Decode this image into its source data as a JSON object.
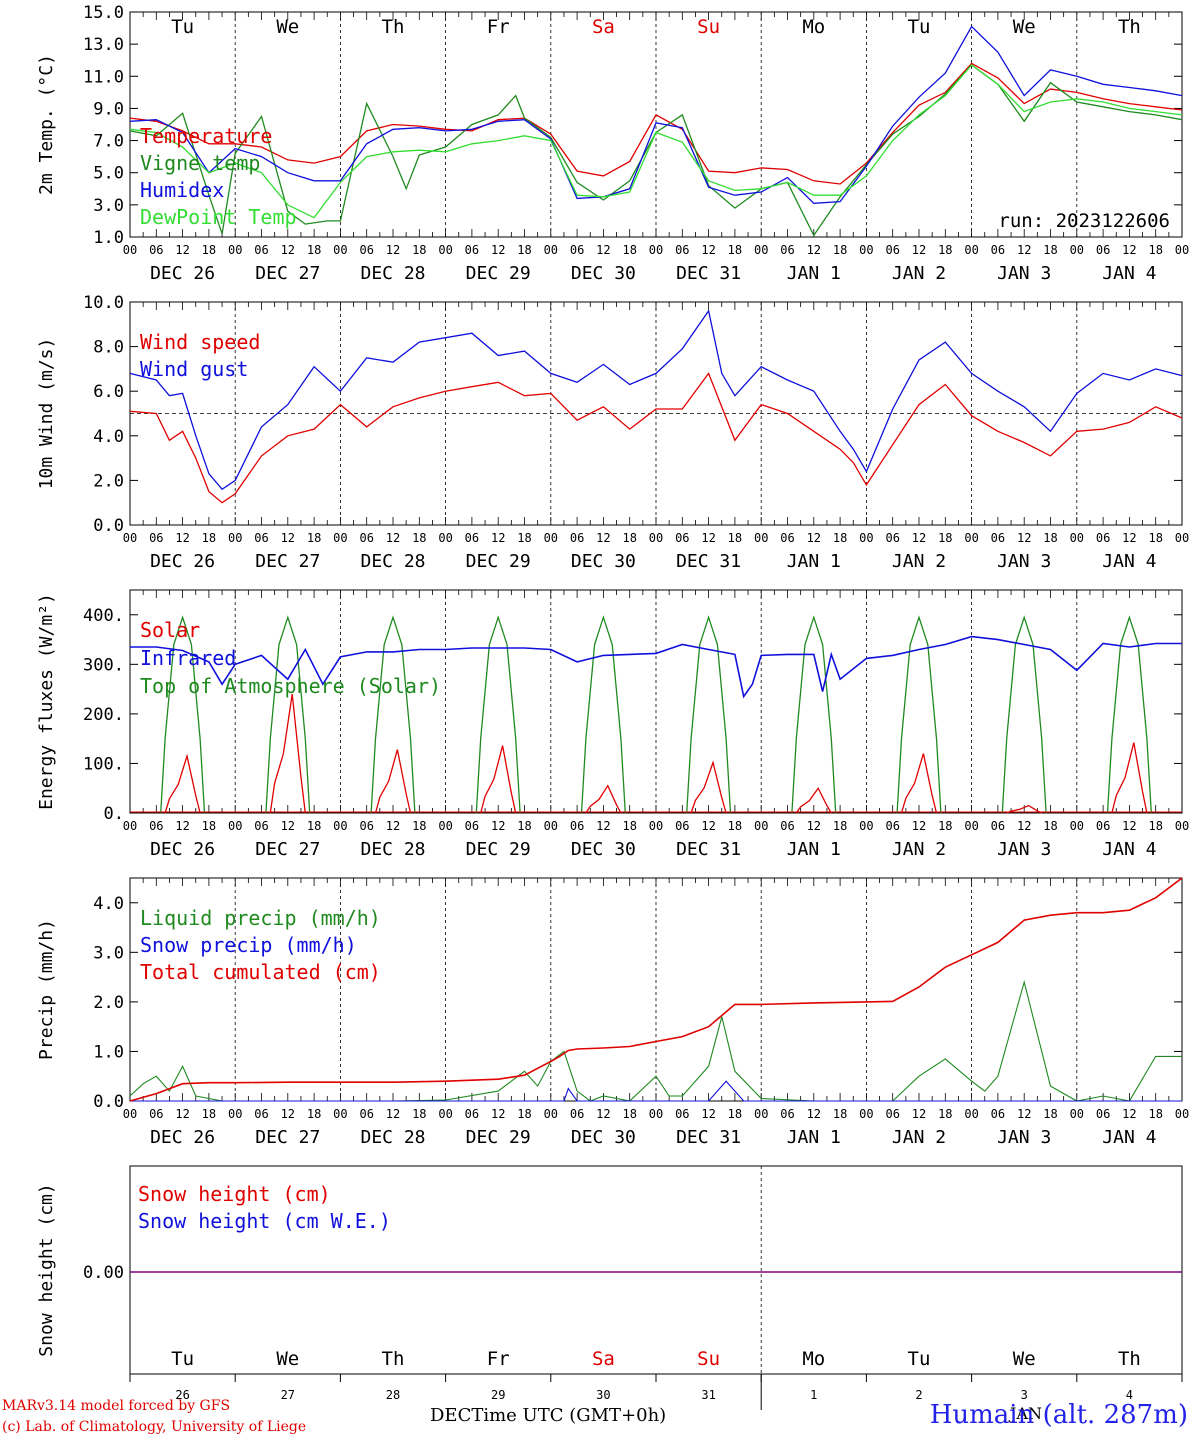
{
  "colors": {
    "red": "#e00000",
    "green": "#1f8a1f",
    "blue": "#1010dd",
    "lightgreen": "#33dd33",
    "purple": "#800080",
    "saturday_sunday_label": "#e00000"
  },
  "day_names": [
    "Tu",
    "We",
    "Th",
    "Fr",
    "Sa",
    "Su",
    "Mo",
    "Tu",
    "We",
    "Th"
  ],
  "weekend_days": [
    "Sa",
    "Su"
  ],
  "date_labels": [
    "DEC 26",
    "DEC 27",
    "DEC 28",
    "DEC 29",
    "DEC 30",
    "DEC 31",
    "JAN  1",
    "JAN  2",
    "JAN  3",
    "JAN  4"
  ],
  "hour_ticks": [
    "00",
    "06",
    "12",
    "18"
  ],
  "last_hour_tick": "00",
  "day_numbers": [
    "26",
    "27",
    "28",
    "29",
    "30",
    "31",
    "1",
    "2",
    "3",
    "4"
  ],
  "footer": {
    "credit_line1": "MARv3.14 model forced by GFS",
    "credit_line2": "(c) Lab. of Climatology, University of Liege",
    "xaxis_label": "Time UTC (GMT+0h)",
    "month_left": "DEC",
    "month_right": "JAN",
    "station": "Humain (alt. 287m)"
  },
  "chart_data": [
    {
      "type": "line",
      "ylabel": "2m Temp. (°C)",
      "ylim": [
        1.0,
        15.0
      ],
      "yticks": [
        "1.0",
        "3.0",
        "5.0",
        "7.0",
        "9.0",
        "11.0",
        "13.0",
        "15.0"
      ],
      "annotation": "run: 2023122606",
      "x_unit": "hours from DEC 26 00 UTC",
      "series": [
        {
          "name": "Temperature",
          "color": "red",
          "x": [
            0,
            6,
            12,
            18,
            24,
            30,
            36,
            42,
            48,
            54,
            60,
            66,
            72,
            78,
            84,
            90,
            96,
            102,
            108,
            114,
            120,
            126,
            132,
            138,
            144,
            150,
            156,
            162,
            168,
            174,
            180,
            186,
            192,
            198,
            204,
            210,
            216,
            222,
            228,
            234,
            240
          ],
          "y": [
            8.4,
            8.2,
            7.6,
            6.8,
            6.8,
            6.6,
            5.8,
            5.6,
            6.0,
            7.6,
            8.0,
            7.9,
            7.7,
            7.6,
            8.3,
            8.4,
            7.4,
            5.1,
            4.8,
            5.7,
            8.6,
            7.7,
            5.1,
            5.0,
            5.3,
            5.2,
            4.5,
            4.3,
            5.6,
            7.5,
            9.2,
            10.0,
            11.8,
            10.9,
            9.3,
            10.2,
            10.0,
            9.6,
            9.3,
            9.1,
            8.9
          ]
        },
        {
          "name": "Vigne temp",
          "color": "green",
          "x": [
            0,
            6,
            12,
            18,
            21,
            24,
            30,
            36,
            40,
            45,
            48,
            54,
            60,
            63,
            66,
            72,
            78,
            84,
            88,
            90,
            96,
            102,
            108,
            114,
            120,
            126,
            132,
            138,
            144,
            150,
            156,
            162,
            168,
            174,
            180,
            186,
            192,
            198,
            204,
            210,
            216,
            222,
            228,
            234,
            240
          ],
          "y": [
            7.6,
            7.3,
            8.7,
            3.6,
            1.2,
            6.2,
            8.5,
            2.6,
            1.8,
            2.0,
            2.0,
            9.3,
            6.0,
            4.0,
            6.1,
            6.6,
            8.0,
            8.6,
            9.8,
            8.4,
            7.2,
            4.4,
            3.3,
            4.5,
            7.5,
            8.6,
            4.2,
            2.8,
            4.0,
            4.4,
            1.1,
            3.5,
            5.5,
            7.4,
            8.5,
            9.9,
            11.7,
            10.5,
            8.2,
            10.6,
            9.4,
            9.1,
            8.8,
            8.6,
            8.3
          ]
        },
        {
          "name": "Humidex",
          "color": "blue",
          "x": [
            0,
            6,
            12,
            18,
            24,
            30,
            36,
            42,
            48,
            54,
            60,
            66,
            72,
            78,
            84,
            90,
            96,
            102,
            108,
            114,
            120,
            126,
            132,
            138,
            144,
            150,
            156,
            162,
            168,
            174,
            180,
            186,
            192,
            198,
            204,
            210,
            216,
            222,
            228,
            234,
            240
          ],
          "y": [
            8.2,
            8.3,
            7.5,
            5.0,
            6.5,
            6.0,
            5.0,
            4.5,
            4.5,
            6.8,
            7.7,
            7.8,
            7.6,
            7.7,
            8.2,
            8.3,
            7.1,
            3.4,
            3.5,
            4.0,
            8.1,
            7.8,
            4.1,
            3.6,
            3.8,
            4.7,
            3.1,
            3.2,
            5.4,
            7.9,
            9.7,
            11.2,
            14.1,
            12.5,
            9.8,
            11.4,
            11.0,
            10.5,
            10.3,
            10.1,
            9.8
          ]
        },
        {
          "name": "DewPoint Temp",
          "color": "lightgreen",
          "x": [
            0,
            6,
            12,
            18,
            24,
            30,
            36,
            42,
            48,
            54,
            60,
            66,
            72,
            78,
            84,
            90,
            96,
            102,
            108,
            114,
            120,
            126,
            132,
            138,
            144,
            150,
            156,
            162,
            168,
            174,
            180,
            186,
            192,
            198,
            204,
            210,
            216,
            222,
            228,
            234,
            240
          ],
          "y": [
            7.7,
            7.5,
            6.6,
            5.0,
            5.6,
            5.0,
            3.0,
            2.2,
            4.4,
            6.0,
            6.3,
            6.4,
            6.3,
            6.8,
            7.0,
            7.3,
            7.0,
            3.6,
            3.5,
            3.8,
            7.5,
            6.9,
            4.5,
            3.9,
            4.0,
            4.4,
            3.6,
            3.6,
            4.8,
            7.0,
            8.6,
            9.8,
            11.7,
            10.5,
            8.8,
            9.4,
            9.6,
            9.4,
            9.0,
            8.8,
            8.6
          ]
        }
      ]
    },
    {
      "type": "line",
      "ylabel": "10m Wind (m/s)",
      "ylim": [
        0.0,
        10.0
      ],
      "yticks": [
        "0.0",
        "2.0",
        "4.0",
        "6.0",
        "8.0",
        "10.0"
      ],
      "reference_line": 5.0,
      "x_unit": "hours from DEC 26 00 UTC",
      "series": [
        {
          "name": "Wind speed",
          "color": "red",
          "x": [
            0,
            6,
            9,
            12,
            15,
            18,
            21,
            24,
            30,
            36,
            42,
            48,
            54,
            60,
            66,
            72,
            78,
            84,
            90,
            96,
            102,
            108,
            114,
            120,
            126,
            132,
            138,
            144,
            150,
            156,
            162,
            165,
            168,
            174,
            180,
            186,
            192,
            198,
            204,
            210,
            216,
            222,
            228,
            234,
            240
          ],
          "y": [
            5.1,
            5.0,
            3.8,
            4.2,
            3.0,
            1.5,
            1.0,
            1.4,
            3.1,
            4.0,
            4.3,
            5.4,
            4.4,
            5.3,
            5.7,
            6.0,
            6.2,
            6.4,
            5.8,
            5.9,
            4.7,
            5.3,
            4.3,
            5.2,
            5.2,
            6.8,
            3.8,
            5.4,
            5.0,
            4.2,
            3.4,
            2.8,
            1.8,
            3.6,
            5.4,
            6.3,
            4.9,
            4.2,
            3.7,
            3.1,
            4.2,
            4.3,
            4.6,
            5.3,
            4.8
          ]
        },
        {
          "name": "Wind gust",
          "color": "blue",
          "x": [
            0,
            6,
            9,
            12,
            15,
            18,
            21,
            24,
            30,
            36,
            42,
            48,
            54,
            60,
            66,
            72,
            78,
            84,
            90,
            96,
            102,
            108,
            114,
            120,
            126,
            132,
            135,
            138,
            144,
            150,
            156,
            162,
            165,
            168,
            174,
            180,
            186,
            192,
            198,
            204,
            210,
            216,
            222,
            228,
            234,
            240
          ],
          "y": [
            6.8,
            6.5,
            5.8,
            5.9,
            4.0,
            2.3,
            1.6,
            2.0,
            4.4,
            5.4,
            7.1,
            6.0,
            7.5,
            7.3,
            8.2,
            8.4,
            8.6,
            7.6,
            7.8,
            6.8,
            6.4,
            7.2,
            6.3,
            6.8,
            7.9,
            9.6,
            6.8,
            5.8,
            7.1,
            6.5,
            6.0,
            4.2,
            3.4,
            2.4,
            5.2,
            7.4,
            8.2,
            6.8,
            6.0,
            5.3,
            4.2,
            5.9,
            6.8,
            6.5,
            7.0,
            6.7
          ]
        }
      ]
    },
    {
      "type": "line",
      "ylabel": "Energy fluxes (W/m²)",
      "ylim": [
        0,
        450
      ],
      "yticks": [
        "0.",
        "100.",
        "200.",
        "300.",
        "400."
      ],
      "x_unit": "hours from DEC 26 00 UTC",
      "solar_peaks": [
        115,
        240,
        128,
        136,
        55,
        102,
        50,
        120,
        15,
        142
      ],
      "toa_peak": 395,
      "series": [
        {
          "name": "Solar",
          "color": "red"
        },
        {
          "name": "Infrared",
          "color": "blue",
          "x": [
            0,
            6,
            12,
            18,
            21,
            24,
            30,
            36,
            40,
            44,
            48,
            54,
            60,
            66,
            72,
            78,
            84,
            90,
            96,
            102,
            108,
            114,
            120,
            126,
            132,
            138,
            140,
            142,
            144,
            150,
            156,
            158,
            160,
            162,
            168,
            174,
            180,
            186,
            192,
            198,
            204,
            210,
            216,
            222,
            228,
            234,
            240
          ],
          "y": [
            335,
            335,
            328,
            305,
            260,
            300,
            318,
            270,
            330,
            260,
            315,
            325,
            325,
            330,
            330,
            333,
            333,
            333,
            330,
            305,
            318,
            320,
            322,
            340,
            330,
            320,
            235,
            260,
            318,
            320,
            320,
            245,
            320,
            270,
            312,
            318,
            330,
            340,
            356,
            350,
            340,
            330,
            288,
            342,
            335,
            342,
            342
          ]
        },
        {
          "name": "Top of Atmosphere (Solar)",
          "color": "green"
        }
      ]
    },
    {
      "type": "line",
      "ylabel": "Precip (mm/h)",
      "ylim": [
        0.0,
        4.5
      ],
      "yticks": [
        "0.0",
        "1.0",
        "2.0",
        "3.0",
        "4.0"
      ],
      "x_unit": "hours from DEC 26 00 UTC",
      "series": [
        {
          "name": "Liquid precip (mm/h)",
          "color": "green",
          "x": [
            0,
            3,
            6,
            9,
            12,
            15,
            18,
            21,
            24,
            36,
            48,
            60,
            72,
            84,
            87,
            90,
            93,
            96,
            99,
            102,
            105,
            108,
            114,
            120,
            123,
            126,
            132,
            135,
            138,
            144,
            156,
            168,
            174,
            180,
            186,
            192,
            195,
            198,
            204,
            210,
            216,
            222,
            228,
            234,
            240
          ],
          "y": [
            0.1,
            0.35,
            0.5,
            0.2,
            0.7,
            0.1,
            0.05,
            0.0,
            0.0,
            0.0,
            0.0,
            0.0,
            0.02,
            0.2,
            0.4,
            0.6,
            0.3,
            0.8,
            1.0,
            0.2,
            0.0,
            0.1,
            0.0,
            0.5,
            0.1,
            0.1,
            0.7,
            1.7,
            0.6,
            0.05,
            0.0,
            0.0,
            0.0,
            0.5,
            0.85,
            0.4,
            0.2,
            0.5,
            2.4,
            0.3,
            0.0,
            0.1,
            0.0,
            0.9,
            0.9
          ]
        },
        {
          "name": "Snow precip (mm/h)",
          "color": "blue",
          "x": [
            0,
            96,
            99,
            100,
            102,
            132,
            136,
            140,
            144,
            240
          ],
          "y": [
            0.0,
            0.0,
            0.0,
            0.25,
            0.0,
            0.0,
            0.4,
            0.0,
            0.0,
            0.0
          ]
        },
        {
          "name": "Total cumulated (cm)",
          "color": "red",
          "x": [
            0,
            6,
            12,
            18,
            24,
            36,
            48,
            60,
            72,
            84,
            90,
            96,
            98,
            100,
            102,
            108,
            114,
            120,
            126,
            132,
            138,
            144,
            156,
            168,
            174,
            180,
            186,
            192,
            198,
            204,
            210,
            216,
            222,
            228,
            234,
            240
          ],
          "y": [
            0.0,
            0.15,
            0.35,
            0.37,
            0.37,
            0.38,
            0.38,
            0.38,
            0.4,
            0.44,
            0.52,
            0.8,
            0.9,
            1.02,
            1.05,
            1.07,
            1.1,
            1.2,
            1.3,
            1.5,
            1.95,
            1.95,
            1.98,
            2.0,
            2.01,
            2.3,
            2.7,
            2.95,
            3.2,
            3.65,
            3.75,
            3.8,
            3.8,
            3.85,
            4.1,
            4.5
          ]
        }
      ]
    },
    {
      "type": "line",
      "ylabel": "Snow height (cm)",
      "yticks": [
        "0.00"
      ],
      "series": [
        {
          "name": "Snow height (cm)",
          "color": "red",
          "y": [
            0.0,
            0.0
          ]
        },
        {
          "name": "Snow height (cm W.E.)",
          "color": "blue",
          "y": [
            0.0,
            0.0
          ]
        }
      ]
    }
  ]
}
